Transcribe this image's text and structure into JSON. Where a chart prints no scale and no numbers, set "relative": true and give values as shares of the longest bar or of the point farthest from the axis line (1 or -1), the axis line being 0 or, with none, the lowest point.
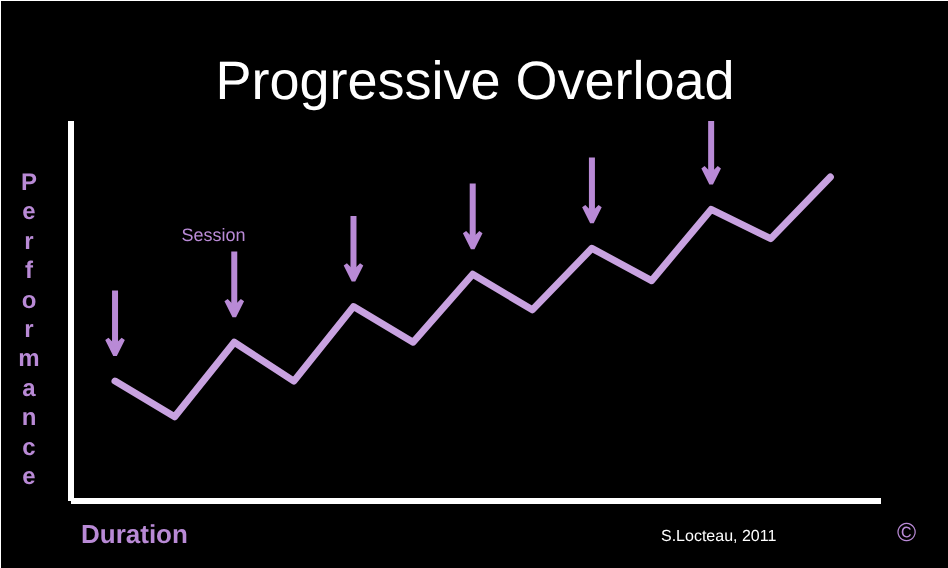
{
  "chart_data": {
    "type": "line",
    "title": "Progressive Overload",
    "xlabel": "Duration",
    "ylabel": "Performance",
    "relative": true,
    "categories": [
      null,
      null,
      null,
      null,
      null,
      null,
      null,
      null,
      null,
      null,
      null,
      null,
      null
    ],
    "series": [
      {
        "color": "#c8a2e0",
        "values": [
          0.37,
          0.26,
          0.49,
          0.37,
          0.6,
          0.49,
          0.7,
          0.59,
          0.78,
          0.68,
          0.9,
          0.81,
          1.0
        ]
      }
    ],
    "annotations": [
      "Session",
      "S.Locteau, 2011",
      "©"
    ],
    "grid": false
  }
}
